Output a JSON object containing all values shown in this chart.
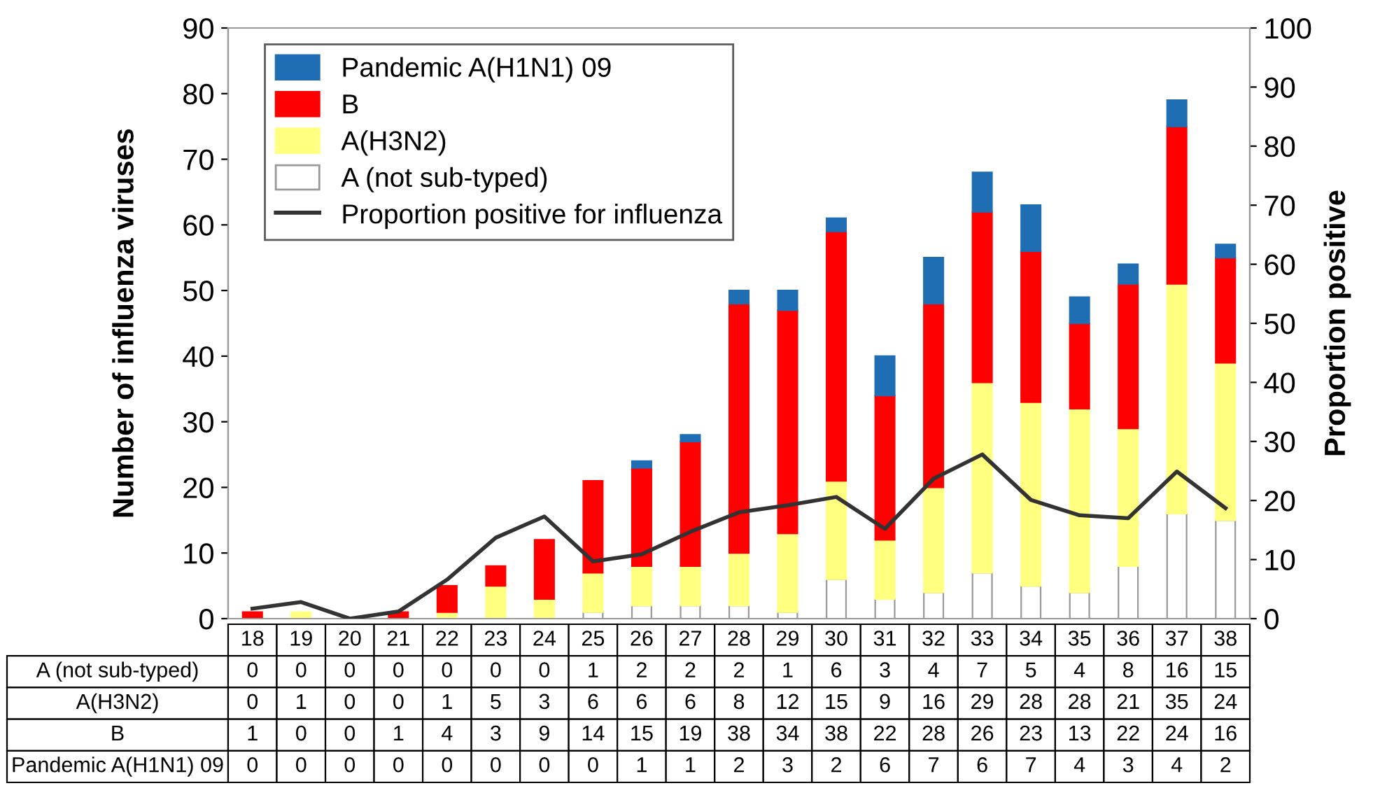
{
  "chart_data": {
    "type": "bar",
    "stacked": true,
    "ylabel": "Number of influenza viruses",
    "y2label": "Proportion positive",
    "categories": [
      "18",
      "19",
      "20",
      "21",
      "22",
      "23",
      "24",
      "25",
      "26",
      "27",
      "28",
      "29",
      "30",
      "31",
      "32",
      "33",
      "34",
      "35",
      "36",
      "37",
      "38"
    ],
    "series": [
      {
        "name": "A (not sub-typed)",
        "color": "#ffffff",
        "values": [
          0,
          0,
          0,
          0,
          0,
          0,
          0,
          1,
          2,
          2,
          2,
          1,
          6,
          3,
          4,
          7,
          5,
          4,
          8,
          16,
          15
        ],
        "value_labels": [
          "0",
          "0",
          "0",
          "0",
          "0",
          "0",
          "0",
          "1",
          "2",
          "2",
          "2",
          "1",
          "6",
          "3",
          "4",
          "7",
          "5",
          "4",
          "8",
          "16",
          "15"
        ]
      },
      {
        "name": "A(H3N2)",
        "color": "#ffff80",
        "values": [
          0,
          1,
          0,
          0,
          1,
          5,
          3,
          6,
          6,
          6,
          8,
          12,
          15,
          9,
          16,
          29,
          28,
          28,
          21,
          35,
          24
        ],
        "value_labels": [
          "0",
          "1",
          "0",
          "0",
          "1",
          "5",
          "3",
          "6",
          "6",
          "6",
          "8",
          "12",
          "15",
          "9",
          "16",
          "29",
          "28",
          "28",
          "21",
          "35",
          "24"
        ]
      },
      {
        "name": "B",
        "color": "#ff0000",
        "values": [
          1,
          0,
          0,
          1,
          4,
          3,
          9,
          14,
          15,
          19,
          38,
          34,
          38,
          22,
          28,
          26,
          23,
          13,
          22,
          24,
          16
        ],
        "value_labels": [
          "1",
          "0",
          "0",
          "1",
          "4",
          "3",
          "9",
          "14",
          "15",
          "19",
          "38",
          "34",
          "38",
          "22",
          "28",
          "26",
          "23",
          "13",
          "22",
          "24",
          "16"
        ]
      },
      {
        "name": "Pandemic A(H1N1) 09",
        "color": "#1f6eb4",
        "values": [
          0,
          0,
          0,
          0,
          0,
          0,
          0,
          0,
          1,
          1,
          2,
          3,
          2,
          6,
          7,
          6,
          7,
          4,
          3,
          4,
          2
        ],
        "value_labels": [
          "0",
          "0",
          "0",
          "0",
          "0",
          "0",
          "0",
          "0",
          "1",
          "1",
          "2",
          "3",
          "2",
          "6",
          "7",
          "6",
          "7",
          "4",
          "3",
          "4",
          "2"
        ]
      },
      {
        "name": "Proportion positive for influenza",
        "type": "line",
        "axis": "y2",
        "color": "#333333",
        "values": [
          1.7,
          2.8,
          0,
          1.2,
          6.6,
          13.7,
          17.3,
          9.7,
          10.9,
          14.7,
          18,
          19.2,
          20.6,
          15.2,
          23.7,
          27.8,
          20.1,
          17.5,
          17,
          24.9,
          18.7
        ]
      }
    ],
    "ylim": [
      0,
      90
    ],
    "yticks": [
      0,
      10,
      20,
      30,
      40,
      50,
      60,
      70,
      80,
      90
    ],
    "y2lim": [
      0,
      100
    ],
    "y2ticks": [
      0,
      10,
      20,
      30,
      40,
      50,
      60,
      70,
      80,
      90,
      100
    ],
    "legend": "top left",
    "grid": false
  }
}
